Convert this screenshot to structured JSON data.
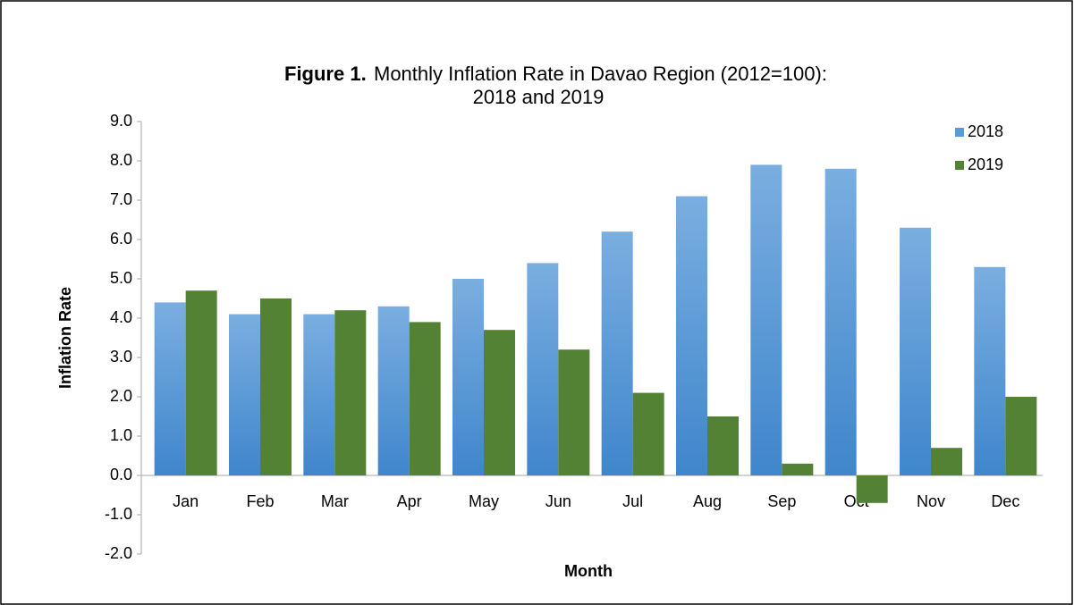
{
  "chart_data": {
    "type": "bar",
    "title_lines": [
      "Figure 1.",
      "Monthly Inflation Rate in Davao Region (2012=100):",
      "2018 and 2019"
    ],
    "x_label": "Month",
    "y_label": "Inflation Rate",
    "categories": [
      "Jan",
      "Feb",
      "Mar",
      "Apr",
      "May",
      "Jun",
      "Jul",
      "Aug",
      "Sep",
      "Oct",
      "Nov",
      "Dec"
    ],
    "series": [
      {
        "name": "2018",
        "color": "#5b9bd5",
        "values": [
          4.4,
          4.1,
          4.1,
          4.3,
          5.0,
          5.4,
          6.2,
          7.1,
          7.9,
          7.8,
          6.3,
          5.3
        ]
      },
      {
        "name": "2019",
        "color": "#548235",
        "values": [
          4.7,
          4.5,
          4.2,
          3.9,
          3.7,
          3.2,
          2.1,
          1.5,
          0.3,
          -0.7,
          0.7,
          2.0
        ]
      }
    ],
    "ylim": [
      -2,
      9
    ],
    "yticks": [
      {
        "value": -2,
        "label": "-2.0"
      },
      {
        "value": -1,
        "label": "-1.0"
      },
      {
        "value": 0,
        "label": "0.0"
      },
      {
        "value": 1,
        "label": "1.0"
      },
      {
        "value": 2,
        "label": "2.0"
      },
      {
        "value": 3,
        "label": "3.0"
      },
      {
        "value": 4,
        "label": "4.0"
      },
      {
        "value": 5,
        "label": "5.0"
      },
      {
        "value": 6,
        "label": "6.0"
      },
      {
        "value": 7,
        "label": "7.0"
      },
      {
        "value": 8,
        "label": "8.0"
      },
      {
        "value": 9,
        "label": "9.0"
      }
    ],
    "grid": false,
    "legend": "top-right"
  }
}
